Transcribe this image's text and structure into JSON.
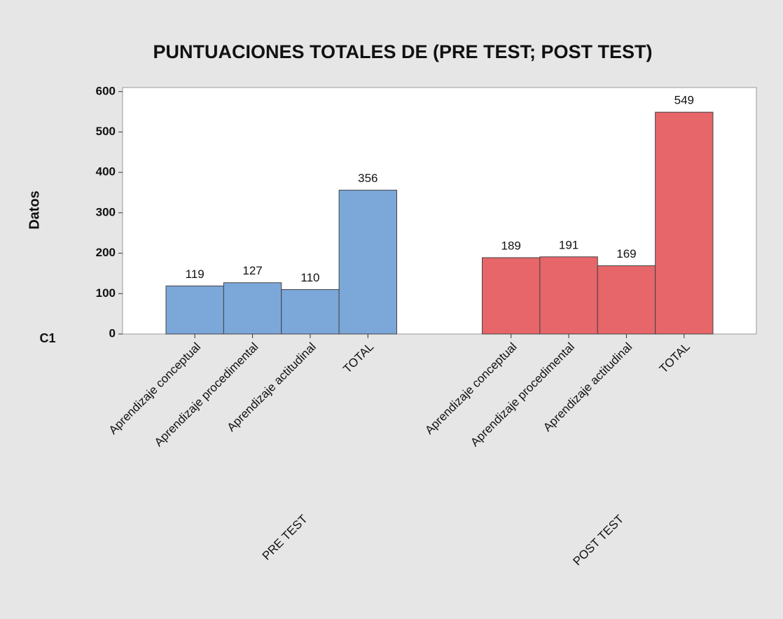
{
  "chart_data": {
    "type": "bar",
    "title": "PUNTUACIONES TOTALES DE (PRE TEST; POST TEST)",
    "y_label": "Datos",
    "x_label": "C1",
    "groups": [
      {
        "name": "PRE TEST",
        "color": "#7ca7d9",
        "categories": [
          "Aprendizaje conceptual",
          "Aprendizaje procedimental",
          "Aprendizaje actitudinal",
          "TOTAL"
        ],
        "values": [
          119,
          127,
          110,
          356
        ]
      },
      {
        "name": "POST TEST",
        "color": "#e6666a",
        "categories": [
          "Aprendizaje conceptual",
          "Aprendizaje procedimental",
          "Aprendizaje actitudinal",
          "TOTAL"
        ],
        "values": [
          189,
          191,
          169,
          549
        ]
      }
    ],
    "ylim": [
      0,
      610
    ],
    "yticks": [
      0,
      100,
      200,
      300,
      400,
      500,
      600
    ],
    "grid": false
  }
}
